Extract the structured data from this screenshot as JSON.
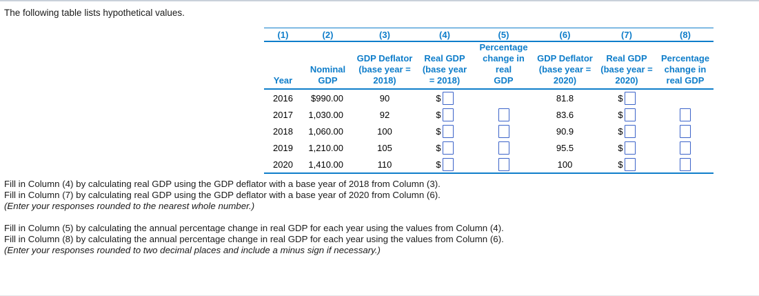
{
  "page": {
    "intro": "The following table lists hypothetical values."
  },
  "colors": {
    "table_accent_blue": "#0e7dca",
    "input_border_blue": "#3a62c8",
    "text_black": "#000000"
  },
  "table": {
    "currency_symbol": "$",
    "column_numbers": [
      "(1)",
      "(2)",
      "(3)",
      "(4)",
      "(5)",
      "(6)",
      "(7)",
      "(8)"
    ],
    "column_headers": [
      "Year",
      "Nominal\nGDP",
      "GDP Deflator\n(base year =\n2018)",
      "Real GDP\n(base year\n= 2018)",
      "Percentage\nchange in real\nGDP",
      "GDP Deflator\n(base year =\n2020)",
      "Real GDP\n(base year =\n2020)",
      "Percentage\nchange in\nreal GDP"
    ],
    "rows": [
      {
        "year": "2016",
        "nominal_gdp": "$990.00",
        "deflator_2018": "90",
        "deflator_2020": "81.8",
        "real_gdp_2018_input": "",
        "pct_change_2018_input": null,
        "real_gdp_2020_input": "",
        "pct_change_2020_input": null
      },
      {
        "year": "2017",
        "nominal_gdp": "1,030.00",
        "deflator_2018": "92",
        "deflator_2020": "83.6",
        "real_gdp_2018_input": "",
        "pct_change_2018_input": "",
        "real_gdp_2020_input": "",
        "pct_change_2020_input": ""
      },
      {
        "year": "2018",
        "nominal_gdp": "1,060.00",
        "deflator_2018": "100",
        "deflator_2020": "90.9",
        "real_gdp_2018_input": "",
        "pct_change_2018_input": "",
        "real_gdp_2020_input": "",
        "pct_change_2020_input": ""
      },
      {
        "year": "2019",
        "nominal_gdp": "1,210.00",
        "deflator_2018": "105",
        "deflator_2020": "95.5",
        "real_gdp_2018_input": "",
        "pct_change_2018_input": "",
        "real_gdp_2020_input": "",
        "pct_change_2020_input": ""
      },
      {
        "year": "2020",
        "nominal_gdp": "1,410.00",
        "deflator_2018": "110",
        "deflator_2020": "100",
        "real_gdp_2018_input": "",
        "pct_change_2018_input": "",
        "real_gdp_2020_input": "",
        "pct_change_2020_input": ""
      }
    ]
  },
  "instructions": {
    "fill_col4": "Fill in Column (4) by calculating real GDP using the GDP deflator with a base year of 2018 from Column (3).",
    "fill_col7": "Fill in Column (7) by calculating real GDP using the GDP deflator with a base year of 2020 from Column (6).",
    "note1": "(Enter your responses rounded to the nearest whole number.)",
    "fill_col5": "Fill in Column (5) by calculating the annual percentage change in real GDP for each year using the values from Column (4).",
    "fill_col8": "Fill in Column (8) by calculating the annual percentage change in real GDP for each year using the values from Column (6).",
    "note2": "(Enter your responses rounded to two decimal places and include a minus sign if necessary.)"
  }
}
